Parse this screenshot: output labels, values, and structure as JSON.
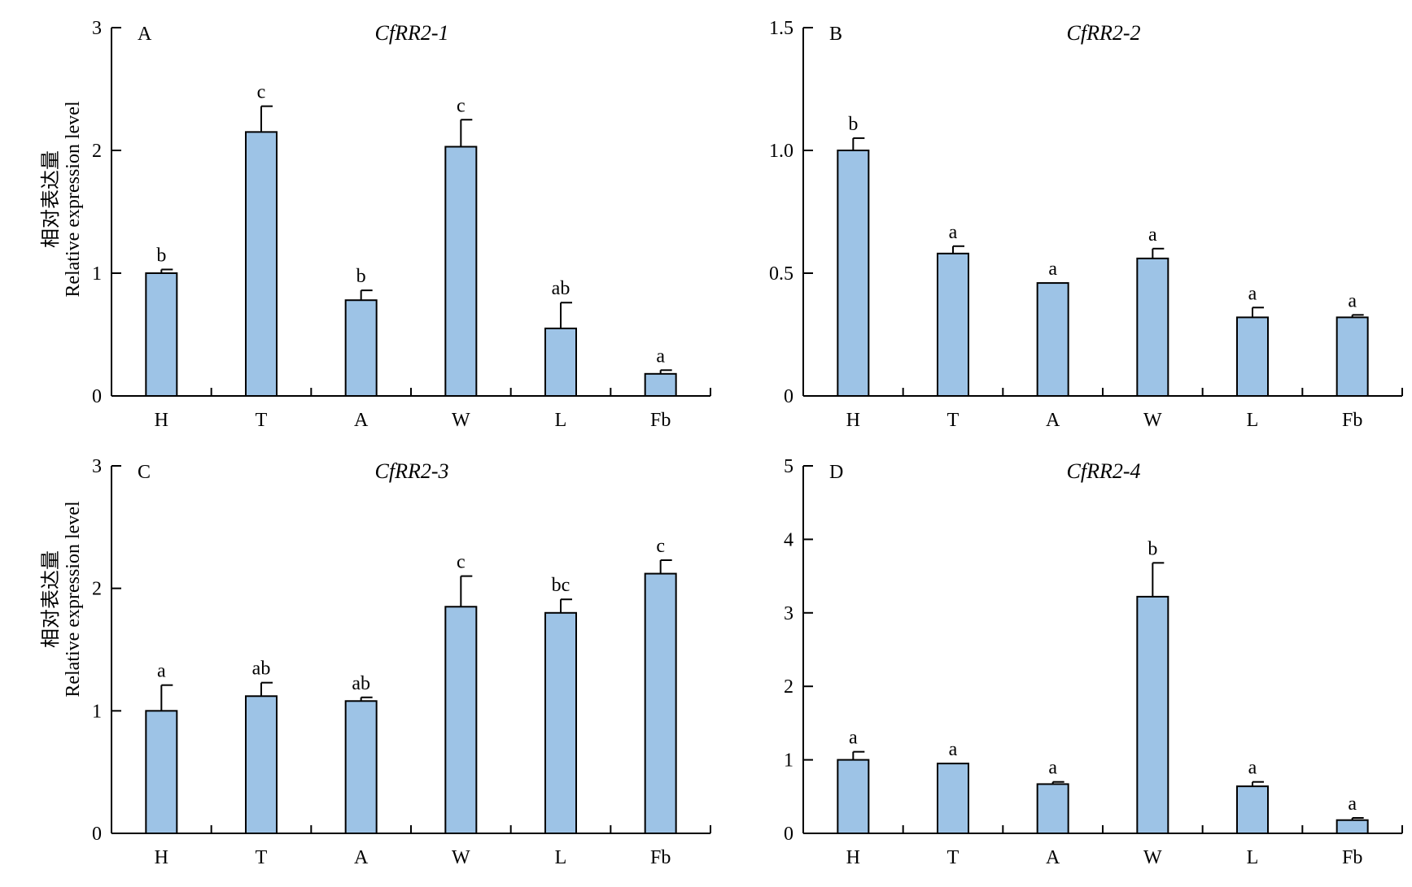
{
  "chart_data": [
    {
      "type": "bar",
      "panel_letter": "A",
      "title": "CfRR2-1",
      "ylabel_cn": "相对表达量",
      "ylabel_en": "Relative expression level",
      "categories": [
        "H",
        "T",
        "A",
        "W",
        "L",
        "Fb"
      ],
      "values": [
        1.0,
        2.15,
        0.78,
        2.03,
        0.55,
        0.18
      ],
      "errors": [
        0.03,
        0.21,
        0.08,
        0.22,
        0.21,
        0.03
      ],
      "significance": [
        "b",
        "c",
        "b",
        "c",
        "ab",
        "a"
      ],
      "ylim": [
        0,
        3
      ],
      "yticks": [
        0,
        1,
        2,
        3
      ],
      "ytick_labels": [
        "0",
        "1",
        "2",
        "3"
      ],
      "bar_color": "#9DC3E6",
      "grid": false
    },
    {
      "type": "bar",
      "panel_letter": "B",
      "title": "CfRR2-2",
      "categories": [
        "H",
        "T",
        "A",
        "W",
        "L",
        "Fb"
      ],
      "values": [
        1.0,
        0.58,
        0.46,
        0.56,
        0.32,
        0.32
      ],
      "errors": [
        0.05,
        0.03,
        0.0,
        0.04,
        0.04,
        0.01
      ],
      "significance": [
        "b",
        "a",
        "a",
        "a",
        "a",
        "a"
      ],
      "ylim": [
        0,
        1.5
      ],
      "yticks": [
        0,
        0.5,
        1.0,
        1.5
      ],
      "ytick_labels": [
        "0",
        "0.5",
        "1.0",
        "1.5"
      ],
      "bar_color": "#9DC3E6",
      "grid": false
    },
    {
      "type": "bar",
      "panel_letter": "C",
      "title": "CfRR2-3",
      "ylabel_cn": "相对表达量",
      "ylabel_en": "Relative expression level",
      "categories": [
        "H",
        "T",
        "A",
        "W",
        "L",
        "Fb"
      ],
      "values": [
        1.0,
        1.12,
        1.08,
        1.85,
        1.8,
        2.12
      ],
      "errors": [
        0.21,
        0.11,
        0.03,
        0.25,
        0.11,
        0.11
      ],
      "significance": [
        "a",
        "ab",
        "ab",
        "c",
        "bc",
        "c"
      ],
      "ylim": [
        0,
        3
      ],
      "yticks": [
        0,
        1,
        2,
        3
      ],
      "ytick_labels": [
        "0",
        "1",
        "2",
        "3"
      ],
      "bar_color": "#9DC3E6",
      "grid": false
    },
    {
      "type": "bar",
      "panel_letter": "D",
      "title": "CfRR2-4",
      "categories": [
        "H",
        "T",
        "A",
        "W",
        "L",
        "Fb"
      ],
      "values": [
        1.0,
        0.95,
        0.67,
        3.22,
        0.64,
        0.18
      ],
      "errors": [
        0.11,
        0.0,
        0.03,
        0.46,
        0.06,
        0.03
      ],
      "significance": [
        "a",
        "a",
        "a",
        "b",
        "a",
        "a"
      ],
      "ylim": [
        0,
        5
      ],
      "yticks": [
        0,
        1,
        2,
        3,
        4,
        5
      ],
      "ytick_labels": [
        "0",
        "1",
        "2",
        "3",
        "4",
        "5"
      ],
      "bar_color": "#9DC3E6",
      "grid": false
    }
  ]
}
